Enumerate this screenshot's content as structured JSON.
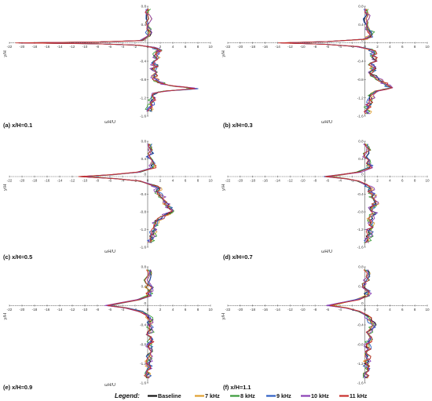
{
  "legend": {
    "title": "Legend:",
    "entries": [
      {
        "label": "Baseline",
        "color": "#111111"
      },
      {
        "label": "7 kHz",
        "color": "#e0a030"
      },
      {
        "label": "8 kHz",
        "color": "#3a9a3a"
      },
      {
        "label": "9 kHz",
        "color": "#2f5fc4"
      },
      {
        "label": "10 kHz",
        "color": "#8a3fb5"
      },
      {
        "label": "11 kHz",
        "color": "#c9302c"
      }
    ]
  },
  "chart_data": [
    {
      "type": "line",
      "caption": "(a) x/H=0.1",
      "xlabel": "ωH/U",
      "ylabel": "y/H",
      "xlim": [
        -22,
        10
      ],
      "ylim": [
        -1.6,
        0.8
      ],
      "xticks": [
        -22,
        -20,
        -18,
        -16,
        -14,
        -12,
        -10,
        -8,
        -6,
        -4,
        -2,
        0,
        2,
        4,
        6,
        8,
        10
      ],
      "yticks": [
        0.8,
        0.4,
        0,
        -0.4,
        -0.8,
        -1.2,
        -1.6
      ],
      "wall_y": 0,
      "profile": {
        "y": [
          0.74,
          0.6,
          0.45,
          0.3,
          0.15,
          0.05,
          0.02,
          0.0,
          -0.02,
          -0.05,
          -0.1,
          -0.15,
          -0.2,
          -0.28,
          -0.36,
          -0.44,
          -0.52,
          -0.6,
          -0.68,
          -0.76,
          -0.84,
          -0.9,
          -0.94,
          -0.97,
          -1.0,
          -1.05,
          -1.1,
          -1.2,
          -1.3,
          -1.4,
          -1.5
        ],
        "x": [
          0.0,
          0.1,
          0.05,
          0.2,
          0.3,
          -1.0,
          -8.0,
          -20.5,
          -8.0,
          -1.5,
          1.0,
          1.8,
          1.5,
          1.2,
          1.5,
          1.0,
          1.3,
          0.8,
          1.2,
          1.0,
          1.5,
          2.5,
          4.0,
          6.0,
          7.8,
          3.0,
          1.2,
          0.8,
          0.6,
          0.4,
          0.3
        ]
      },
      "series": [
        {
          "name": "Baseline",
          "peak_x": -20.5,
          "noise": 0.35
        },
        {
          "name": "7 kHz",
          "peak_x": -19.8,
          "noise": 0.45
        },
        {
          "name": "8 kHz",
          "peak_x": -20.2,
          "noise": 0.5
        },
        {
          "name": "9 kHz",
          "peak_x": -20.0,
          "noise": 0.45
        },
        {
          "name": "10 kHz",
          "peak_x": -20.4,
          "noise": 0.5
        },
        {
          "name": "11 kHz",
          "peak_x": -21.0,
          "noise": 0.4
        }
      ]
    },
    {
      "type": "line",
      "caption": "(b) x/H=0.3",
      "xlabel": "ωH/U",
      "ylabel": "y/H",
      "xlim": [
        -22,
        10
      ],
      "ylim": [
        -1.6,
        0.8
      ],
      "xticks": [
        -22,
        -20,
        -18,
        -16,
        -14,
        -12,
        -10,
        -8,
        -6,
        -4,
        -2,
        0,
        2,
        4,
        6,
        8,
        10
      ],
      "yticks": [
        0.8,
        0.4,
        0,
        -0.4,
        -0.8,
        -1.2,
        -1.6
      ],
      "wall_y": 0,
      "profile": {
        "y": [
          0.74,
          0.6,
          0.45,
          0.3,
          0.18,
          0.08,
          0.03,
          0.0,
          -0.03,
          -0.08,
          -0.14,
          -0.2,
          -0.28,
          -0.36,
          -0.44,
          -0.52,
          -0.6,
          -0.68,
          -0.76,
          -0.84,
          -0.92,
          -0.98,
          -1.05,
          -1.15,
          -1.25,
          -1.35,
          -1.45,
          -1.55
        ],
        "x": [
          0.2,
          0.4,
          0.1,
          0.5,
          1.2,
          0.0,
          -6.0,
          -13.5,
          -6.5,
          -1.2,
          0.8,
          1.5,
          1.2,
          1.6,
          1.0,
          1.3,
          1.5,
          1.0,
          1.8,
          2.6,
          3.6,
          4.0,
          2.0,
          1.0,
          0.8,
          0.6,
          0.5,
          0.4
        ]
      },
      "series": [
        {
          "name": "Baseline",
          "peak_x": -13.5,
          "noise": 0.35
        },
        {
          "name": "7 kHz",
          "peak_x": -12.8,
          "noise": 0.45
        },
        {
          "name": "8 kHz",
          "peak_x": -13.2,
          "noise": 0.5
        },
        {
          "name": "9 kHz",
          "peak_x": -13.0,
          "noise": 0.45
        },
        {
          "name": "10 kHz",
          "peak_x": -13.4,
          "noise": 0.5
        },
        {
          "name": "11 kHz",
          "peak_x": -13.9,
          "noise": 0.4
        }
      ]
    },
    {
      "type": "line",
      "caption": "(c) x/H=0.5",
      "xlabel": "ωH/U",
      "ylabel": "y/H",
      "xlim": [
        -22,
        10
      ],
      "ylim": [
        -1.6,
        0.8
      ],
      "xticks": [
        -22,
        -20,
        -18,
        -16,
        -14,
        -12,
        -10,
        -8,
        -6,
        -4,
        -2,
        0,
        2,
        4,
        6,
        8,
        10
      ],
      "yticks": [
        0.8,
        0.4,
        0,
        -0.4,
        -0.8,
        -1.2,
        -1.6
      ],
      "wall_y": 0,
      "profile": {
        "y": [
          0.74,
          0.6,
          0.45,
          0.3,
          0.2,
          0.1,
          0.04,
          0.0,
          -0.05,
          -0.1,
          -0.18,
          -0.26,
          -0.34,
          -0.42,
          -0.5,
          -0.58,
          -0.66,
          -0.74,
          -0.82,
          -0.9,
          -1.0,
          -1.1,
          -1.2,
          -1.3,
          -1.4,
          -1.5
        ],
        "x": [
          0.3,
          0.5,
          0.2,
          0.8,
          1.0,
          -1.5,
          -6.0,
          -10.8,
          -5.0,
          -1.5,
          0.5,
          1.8,
          1.5,
          2.0,
          2.5,
          2.8,
          3.2,
          3.8,
          3.5,
          2.5,
          1.5,
          1.2,
          1.0,
          0.8,
          0.6,
          0.4
        ]
      },
      "series": [
        {
          "name": "Baseline",
          "peak_x": -10.8,
          "noise": 0.35
        },
        {
          "name": "7 kHz",
          "peak_x": -9.8,
          "noise": 0.45
        },
        {
          "name": "8 kHz",
          "peak_x": -10.2,
          "noise": 0.5
        },
        {
          "name": "9 kHz",
          "peak_x": -10.4,
          "noise": 0.45
        },
        {
          "name": "10 kHz",
          "peak_x": -10.6,
          "noise": 0.5
        },
        {
          "name": "11 kHz",
          "peak_x": -11.0,
          "noise": 0.4
        }
      ]
    },
    {
      "type": "line",
      "caption": "(d) x/H=0.7",
      "xlabel": "ωH/U",
      "ylabel": "y/H",
      "xlim": [
        -22,
        10
      ],
      "ylim": [
        -1.6,
        0.8
      ],
      "xticks": [
        -22,
        -20,
        -18,
        -16,
        -14,
        -12,
        -10,
        -8,
        -6,
        -4,
        -2,
        0,
        2,
        4,
        6,
        8,
        10
      ],
      "yticks": [
        0.8,
        0.4,
        0,
        -0.4,
        -0.8,
        -1.2,
        -1.6
      ],
      "wall_y": 0,
      "profile": {
        "y": [
          0.74,
          0.6,
          0.45,
          0.3,
          0.2,
          0.1,
          0.04,
          0.0,
          -0.05,
          -0.1,
          -0.18,
          -0.26,
          -0.34,
          -0.42,
          -0.5,
          -0.58,
          -0.66,
          -0.74,
          -0.82,
          -0.9,
          -1.0,
          -1.1,
          -1.2,
          -1.3,
          -1.4,
          -1.5
        ],
        "x": [
          0.2,
          0.5,
          0.0,
          0.6,
          0.8,
          -1.0,
          -4.0,
          -6.2,
          -3.0,
          -1.0,
          0.2,
          1.0,
          0.8,
          1.5,
          1.2,
          1.8,
          1.4,
          1.0,
          1.6,
          1.2,
          0.8,
          1.0,
          0.6,
          0.8,
          0.4,
          0.3
        ]
      },
      "series": [
        {
          "name": "Baseline",
          "peak_x": -6.2,
          "noise": 0.35
        },
        {
          "name": "7 kHz",
          "peak_x": -5.5,
          "noise": 0.45
        },
        {
          "name": "8 kHz",
          "peak_x": -5.8,
          "noise": 0.5
        },
        {
          "name": "9 kHz",
          "peak_x": -6.6,
          "noise": 0.45
        },
        {
          "name": "10 kHz",
          "peak_x": -6.0,
          "noise": 0.5
        },
        {
          "name": "11 kHz",
          "peak_x": -6.4,
          "noise": 0.4
        }
      ]
    },
    {
      "type": "line",
      "caption": "(e) x/H=0.9",
      "xlabel": "ωH/U",
      "ylabel": "y/H",
      "xlim": [
        -22,
        10
      ],
      "ylim": [
        -1.6,
        0.8
      ],
      "xticks": [
        -22,
        -20,
        -18,
        -16,
        -14,
        -12,
        -10,
        -8,
        -6,
        -4,
        -2,
        0,
        2,
        4,
        6,
        8,
        10
      ],
      "yticks": [
        0.8,
        0.4,
        0,
        -0.4,
        -0.8,
        -1.2,
        -1.6
      ],
      "wall_y": 0,
      "profile": {
        "y": [
          0.74,
          0.6,
          0.45,
          0.3,
          0.2,
          0.12,
          0.05,
          0.0,
          -0.05,
          -0.12,
          -0.2,
          -0.3,
          -0.4,
          -0.5,
          -0.6,
          -0.7,
          -0.8,
          -0.9,
          -1.0,
          -1.1,
          -1.2,
          -1.3,
          -1.4,
          -1.5
        ],
        "x": [
          0.1,
          0.3,
          0.0,
          0.4,
          0.2,
          -1.5,
          -4.5,
          -6.5,
          -3.5,
          -1.2,
          0.0,
          0.5,
          0.3,
          0.6,
          0.2,
          0.5,
          0.3,
          0.4,
          0.2,
          0.3,
          0.1,
          0.2,
          0.0,
          0.1
        ]
      },
      "series": [
        {
          "name": "Baseline",
          "peak_x": -6.5,
          "noise": 0.35
        },
        {
          "name": "7 kHz",
          "peak_x": -5.8,
          "noise": 0.45
        },
        {
          "name": "8 kHz",
          "peak_x": -6.2,
          "noise": 0.5
        },
        {
          "name": "9 kHz",
          "peak_x": -6.0,
          "noise": 0.45
        },
        {
          "name": "10 kHz",
          "peak_x": -6.8,
          "noise": 0.5
        },
        {
          "name": "11 kHz",
          "peak_x": -6.4,
          "noise": 0.4
        }
      ]
    },
    {
      "type": "line",
      "caption": "(f) x/H=1.1",
      "xlabel": "",
      "ylabel": "y/H",
      "xlim": [
        -22,
        10
      ],
      "ylim": [
        -1.6,
        0.8
      ],
      "xticks": [
        -22,
        -20,
        -18,
        -16,
        -14,
        -12,
        -10,
        -8,
        -6,
        -4,
        -2,
        0,
        2,
        4,
        6,
        8,
        10
      ],
      "yticks": [
        0.8,
        0.4,
        0,
        -0.4,
        -0.8,
        -1.2,
        -1.6
      ],
      "wall_y": 0,
      "profile": {
        "y": [
          0.74,
          0.6,
          0.45,
          0.3,
          0.2,
          0.12,
          0.05,
          0.0,
          -0.05,
          -0.12,
          -0.2,
          -0.3,
          -0.4,
          -0.5,
          -0.6,
          -0.7,
          -0.8,
          -0.9,
          -1.0,
          -1.1,
          -1.2,
          -1.3,
          -1.4,
          -1.5
        ],
        "x": [
          0.2,
          0.4,
          0.0,
          0.5,
          0.3,
          -1.2,
          -4.0,
          -5.8,
          -3.0,
          -1.0,
          0.3,
          0.8,
          1.5,
          1.0,
          0.6,
          0.8,
          0.4,
          0.6,
          0.3,
          0.5,
          0.2,
          0.4,
          0.1,
          0.2
        ]
      },
      "series": [
        {
          "name": "Baseline",
          "peak_x": -5.8,
          "noise": 0.35
        },
        {
          "name": "7 kHz",
          "peak_x": -5.2,
          "noise": 0.45
        },
        {
          "name": "8 kHz",
          "peak_x": -5.5,
          "noise": 0.5
        },
        {
          "name": "9 kHz",
          "peak_x": -6.0,
          "noise": 0.45
        },
        {
          "name": "10 kHz",
          "peak_x": -6.2,
          "noise": 0.5
        },
        {
          "name": "11 kHz",
          "peak_x": -5.6,
          "noise": 0.4
        }
      ]
    }
  ]
}
